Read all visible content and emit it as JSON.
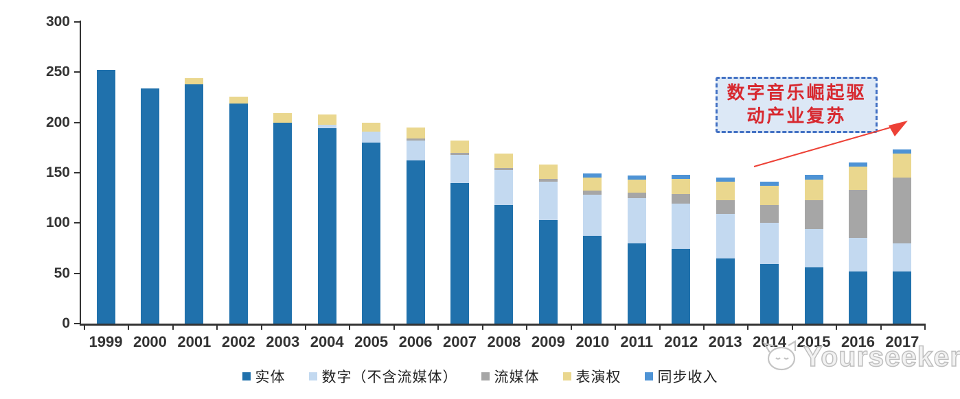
{
  "chart_data": {
    "type": "bar",
    "stacked": true,
    "title": "",
    "xlabel": "",
    "ylabel": "",
    "ylim": [
      0,
      300
    ],
    "ytick_step": 50,
    "ytick_labels": [
      "0",
      "50",
      "100",
      "150",
      "200",
      "250",
      "300"
    ],
    "grid": false,
    "legend_position": "bottom",
    "categories": [
      "1999",
      "2000",
      "2001",
      "2002",
      "2003",
      "2004",
      "2005",
      "2006",
      "2007",
      "2008",
      "2009",
      "2010",
      "2011",
      "2012",
      "2013",
      "2014",
      "2015",
      "2016",
      "2017"
    ],
    "series": [
      {
        "name": "实体",
        "color": "#2071AC",
        "values": [
          252,
          234,
          238,
          219,
          200,
          194,
          180,
          162,
          140,
          118,
          103,
          87,
          80,
          74,
          65,
          59,
          56,
          52,
          52
        ]
      },
      {
        "name": "数字（不含流媒体）",
        "color": "#C3D9F0",
        "values": [
          0,
          0,
          0,
          0,
          0,
          4,
          11,
          20,
          28,
          35,
          38,
          41,
          45,
          45,
          44,
          41,
          38,
          33,
          28
        ]
      },
      {
        "name": "流媒体",
        "color": "#A6A6A6",
        "values": [
          0,
          0,
          0,
          0,
          0,
          0,
          0,
          2,
          2,
          2,
          3,
          4,
          5,
          10,
          14,
          18,
          29,
          48,
          65
        ]
      },
      {
        "name": "表演权",
        "color": "#EAD78E",
        "values": [
          0,
          0,
          6,
          7,
          9,
          10,
          9,
          11,
          12,
          14,
          14,
          13,
          13,
          15,
          18,
          19,
          20,
          23,
          24
        ]
      },
      {
        "name": "同步收入",
        "color": "#4E93D5",
        "values": [
          0,
          0,
          0,
          0,
          0,
          0,
          0,
          0,
          0,
          0,
          0,
          4,
          4,
          4,
          4,
          4,
          5,
          4,
          4
        ]
      }
    ]
  },
  "annotation": {
    "line1": "数字音乐崛起驱",
    "line2": "动产业复苏",
    "text_color": "#D7282F",
    "box_fill": "#DCE8F6",
    "box_border": "#4472C4",
    "arrow_color": "#ED4136"
  },
  "watermark": {
    "text": "Yourseeker",
    "icon": "cat-logo-icon",
    "color": "#BFBFBF"
  }
}
